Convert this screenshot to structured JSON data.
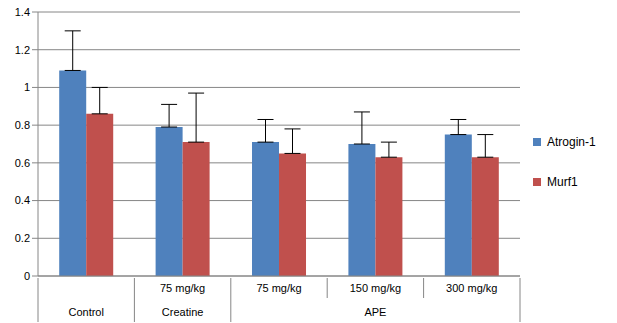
{
  "chart_data": {
    "type": "bar",
    "categories": [
      null,
      "75 mg/kg",
      "75 mg/kg",
      "150 mg/kg",
      "300 mg/kg"
    ],
    "groups": [
      "Control",
      "Creatine",
      "APE",
      "APE",
      "APE"
    ],
    "series": [
      {
        "name": "Atrogin-1",
        "color": "#4f81bd",
        "values": [
          1.09,
          0.79,
          0.71,
          0.7,
          0.75
        ],
        "errors": [
          0.21,
          0.12,
          0.12,
          0.17,
          0.08
        ]
      },
      {
        "name": "Murf1",
        "color": "#c0504d",
        "values": [
          0.86,
          0.71,
          0.65,
          0.63,
          0.63
        ],
        "errors": [
          0.14,
          0.26,
          0.13,
          0.08,
          0.12
        ]
      }
    ],
    "ylim": [
      0,
      1.4
    ],
    "yticks": [
      0,
      0.2,
      0.4,
      0.6,
      0.8,
      1,
      1.2,
      1.4
    ],
    "grid": true,
    "legend": "right"
  }
}
